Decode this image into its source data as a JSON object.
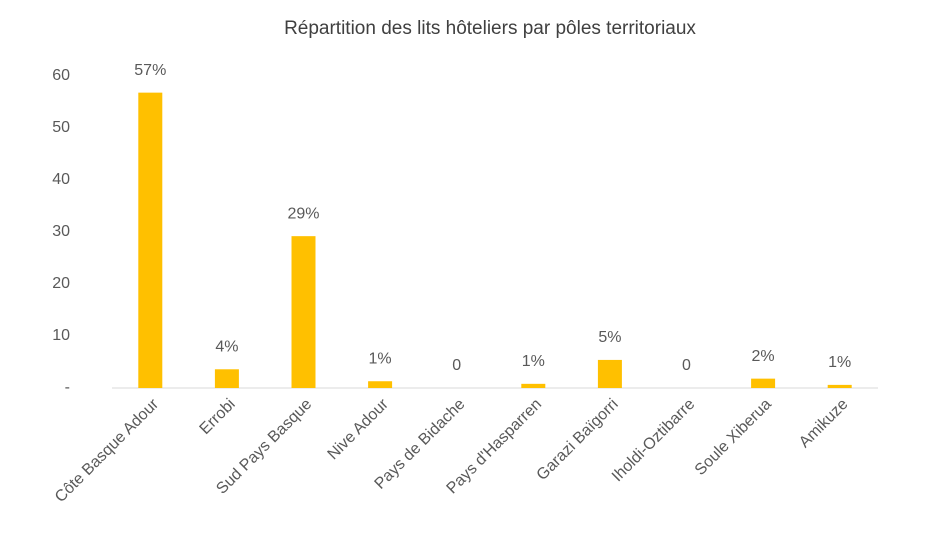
{
  "chart_data": {
    "type": "bar",
    "title": "Répartition des lits hôteliers par pôles territoriaux",
    "categories": [
      "Côte Basque Adour",
      "Errobi",
      "Sud Pays Basque",
      "Nive Adour",
      "Pays de Bidache",
      "Pays d'Hasparren",
      "Garazi Baïgorri",
      "Iholdi-Oztibarre",
      "Soule Xiberua",
      "Amikuze"
    ],
    "values": [
      56.8,
      3.6,
      29.2,
      1.3,
      0,
      0.8,
      5.4,
      0,
      1.8,
      0.6
    ],
    "value_labels": [
      "57%",
      "4%",
      "29%",
      "1%",
      "0",
      "1%",
      "5%",
      "0",
      "2%",
      "1%"
    ],
    "color": "#ffc000",
    "ylim": [
      0,
      60
    ],
    "yticks": [
      {
        "value": 0,
        "label": "-"
      },
      10,
      20,
      30,
      40,
      50,
      60
    ],
    "grid": false
  }
}
